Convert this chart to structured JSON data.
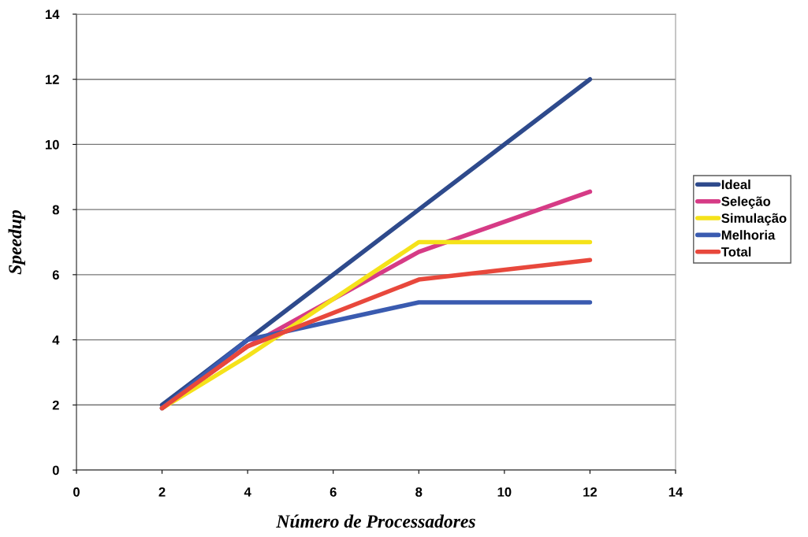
{
  "chart_data": {
    "type": "line",
    "xlabel": "Número de Processadores",
    "ylabel": "Speedup",
    "x": [
      2,
      4,
      8,
      12
    ],
    "series": [
      {
        "name": "Ideal",
        "color": "#2e4a8c",
        "values": [
          2,
          4,
          8,
          12
        ]
      },
      {
        "name": "Seleção",
        "color": "#d63b86",
        "values": [
          1.9,
          3.8,
          6.7,
          8.55
        ]
      },
      {
        "name": "Simulação",
        "color": "#f5e21a",
        "values": [
          1.9,
          3.5,
          7.0,
          7.0
        ]
      },
      {
        "name": "Melhoria",
        "color": "#3a5bb0",
        "values": [
          1.9,
          4.0,
          5.15,
          5.15
        ]
      },
      {
        "name": "Total",
        "color": "#e8483c",
        "values": [
          1.9,
          3.8,
          5.85,
          6.45
        ]
      }
    ],
    "xlim": [
      0,
      14
    ],
    "xticks": [
      0,
      2,
      4,
      6,
      8,
      10,
      12,
      14
    ],
    "ylim": [
      0,
      14
    ],
    "yticks": [
      0,
      2,
      4,
      6,
      8,
      10,
      12,
      14
    ],
    "grid": "y",
    "legend": "right",
    "marker": "none",
    "line_style": "solid"
  }
}
